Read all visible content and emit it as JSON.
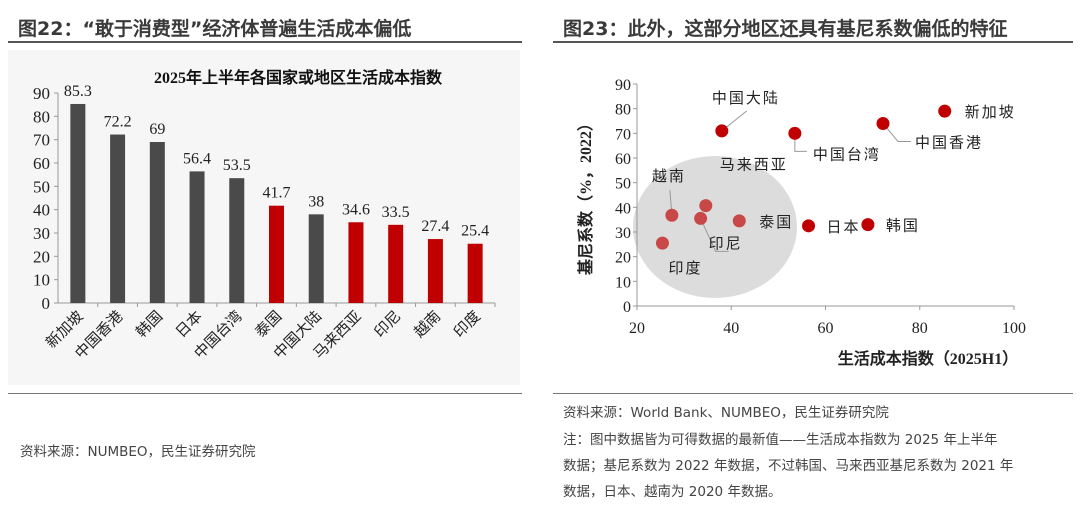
{
  "left": {
    "title": "图22：“敢于消费型”经济体普遍生活成本偏低",
    "source": "资料来源：NUMBEO，民生证券研究院"
  },
  "right": {
    "title": "图23：此外，这部分地区还具有基尼系数偏低的特征",
    "source": "资料来源：World Bank、NUMBEO，民生证券研究院",
    "note_lines": [
      "注：图中数据皆为可得数据的最新值——生活成本指数为 2025 年上半年",
      "数据；基尼系数为 2022 年数据，不过韩国、马来西亚基尼系数为 2021 年",
      "数据，日本、越南为 2020 年数据。"
    ]
  },
  "chart_data": [
    {
      "type": "bar",
      "title": "2025年上半年各国家或地区生活成本指数",
      "categories": [
        "新加坡",
        "中国香港",
        "韩国",
        "日本",
        "中国台湾",
        "泰国",
        "中国大陆",
        "马来西亚",
        "印尼",
        "越南",
        "印度"
      ],
      "values": [
        85.3,
        72.2,
        69,
        56.4,
        53.5,
        41.7,
        38,
        34.6,
        33.5,
        27.4,
        25.4
      ],
      "data_labels": [
        "85.3",
        "72.2",
        "69",
        "56.4",
        "53.5",
        "41.7",
        "38",
        "34.6",
        "33.5",
        "27.4",
        "25.4"
      ],
      "highlighted": [
        false,
        false,
        false,
        false,
        false,
        true,
        false,
        true,
        true,
        true,
        true
      ],
      "colors": {
        "default": "#4a4a4a",
        "highlight": "#c00000"
      },
      "ylim": [
        0,
        90
      ],
      "yticks": [
        0,
        10,
        20,
        30,
        40,
        50,
        60,
        70,
        80,
        90
      ],
      "grid": false
    },
    {
      "type": "scatter",
      "xlabel": "生活成本指数（2025H1）",
      "ylabel": "基尼系数（%，2022）",
      "xlim": [
        20,
        100
      ],
      "ylim": [
        0,
        90
      ],
      "xticks": [
        20,
        40,
        60,
        80,
        100
      ],
      "yticks": [
        0,
        10,
        20,
        30,
        40,
        50,
        60,
        70,
        80,
        90
      ],
      "grid": false,
      "points": [
        {
          "label": "新加坡",
          "x": 85.3,
          "y": 79,
          "group": "high"
        },
        {
          "label": "中国香港",
          "x": 72.2,
          "y": 74,
          "group": "high"
        },
        {
          "label": "中国台湾",
          "x": 53.5,
          "y": 70,
          "group": "high"
        },
        {
          "label": "中国大陆",
          "x": 38,
          "y": 71,
          "group": "high"
        },
        {
          "label": "日本",
          "x": 56.4,
          "y": 32.5,
          "group": "high"
        },
        {
          "label": "韩国",
          "x": 69,
          "y": 33,
          "group": "high"
        },
        {
          "label": "泰国",
          "x": 41.7,
          "y": 34.5,
          "group": "low"
        },
        {
          "label": "马来西亚",
          "x": 34.6,
          "y": 40.7,
          "group": "low"
        },
        {
          "label": "印尼",
          "x": 33.5,
          "y": 35.5,
          "group": "low"
        },
        {
          "label": "越南",
          "x": 27.4,
          "y": 36.8,
          "group": "low"
        },
        {
          "label": "印度",
          "x": 25.4,
          "y": 25.5,
          "group": "low"
        }
      ],
      "colors": {
        "high": "#c00000",
        "low": "#c84848",
        "highlight_region": "#dcdcdc"
      }
    }
  ]
}
